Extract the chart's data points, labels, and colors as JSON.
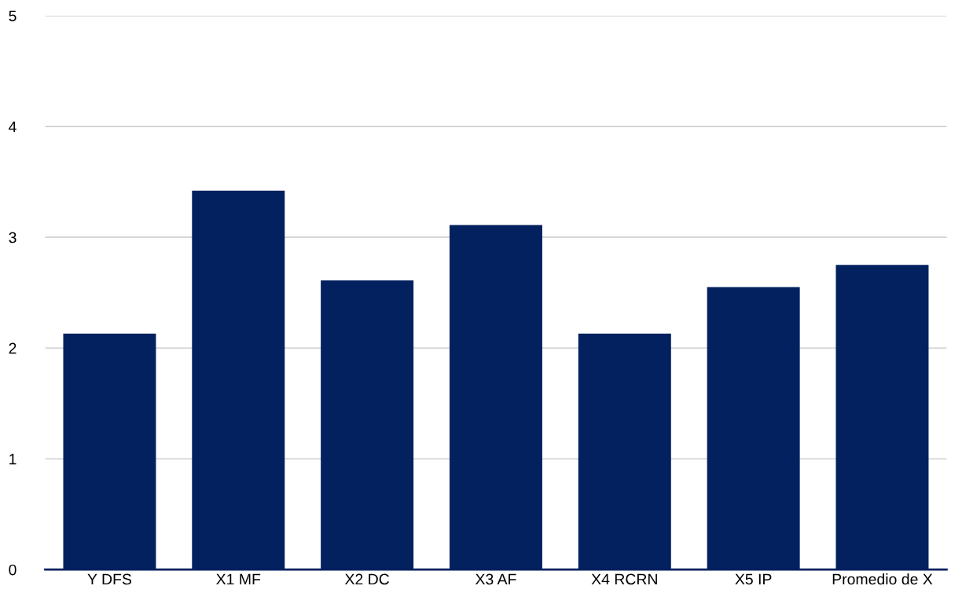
{
  "chart_data": {
    "type": "bar",
    "categories": [
      "Y DFS",
      "X1 MF",
      "X2 DC",
      "X3 AF",
      "X4 RCRN",
      "X5 IP",
      "Promedio de X"
    ],
    "values": [
      2.13,
      3.42,
      2.61,
      3.11,
      2.13,
      2.55,
      2.75
    ],
    "color": "#03215f",
    "ylim": [
      0,
      5
    ],
    "yticks": [
      0,
      1,
      2,
      3,
      4,
      5
    ],
    "grid": "y",
    "legend": false
  }
}
